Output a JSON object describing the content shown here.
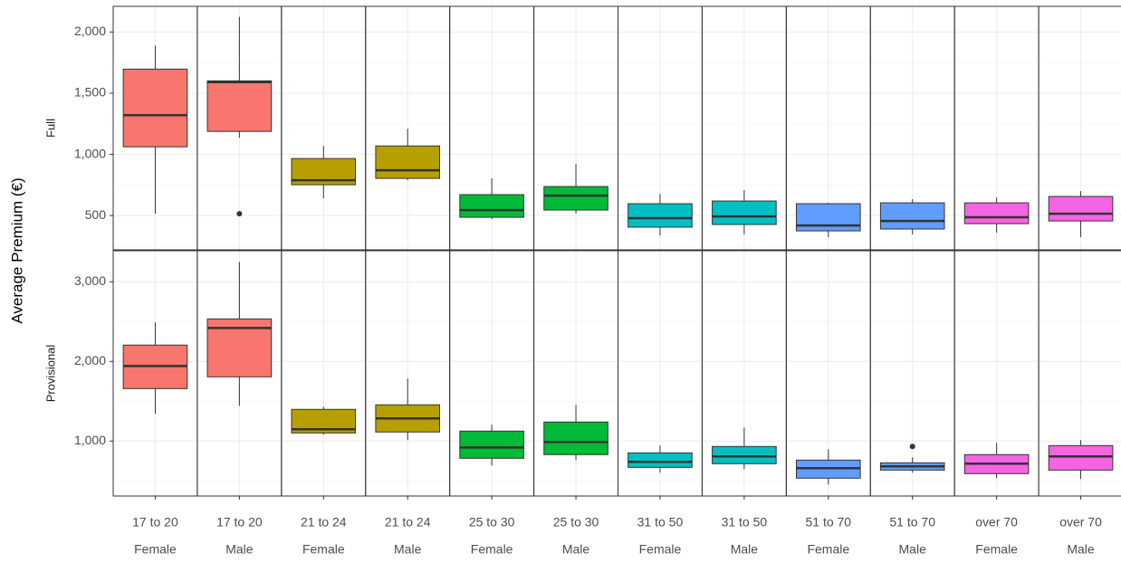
{
  "chart_data": {
    "type": "box",
    "y_label": "Average Premium (€)",
    "grid": true,
    "categories": [
      {
        "age": "17 to 20",
        "gender": "Female",
        "color": "#F8766D"
      },
      {
        "age": "17 to 20",
        "gender": "Male",
        "color": "#F8766D"
      },
      {
        "age": "21 to 24",
        "gender": "Female",
        "color": "#B79F00"
      },
      {
        "age": "21 to 24",
        "gender": "Male",
        "color": "#B79F00"
      },
      {
        "age": "25 to 30",
        "gender": "Female",
        "color": "#00BA38"
      },
      {
        "age": "25 to 30",
        "gender": "Male",
        "color": "#00BA38"
      },
      {
        "age": "31 to 50",
        "gender": "Female",
        "color": "#00BFC4"
      },
      {
        "age": "31 to 50",
        "gender": "Male",
        "color": "#00BFC4"
      },
      {
        "age": "51 to 70",
        "gender": "Female",
        "color": "#619CFF"
      },
      {
        "age": "51 to 70",
        "gender": "Male",
        "color": "#619CFF"
      },
      {
        "age": "over 70",
        "gender": "Female",
        "color": "#F564E3"
      },
      {
        "age": "over 70",
        "gender": "Male",
        "color": "#F564E3"
      }
    ],
    "facets": [
      {
        "label": "Full",
        "ylim": [
          220,
          2210
        ],
        "yticks": [
          {
            "value": 500,
            "label": "500"
          },
          {
            "value": 1000,
            "label": "1,000"
          },
          {
            "value": 1500,
            "label": "1,500"
          },
          {
            "value": 2000,
            "label": "2,000"
          }
        ],
        "boxes": [
          {
            "min": 515,
            "q1": 1062,
            "median": 1320,
            "q3": 1697,
            "max": 1889,
            "outliers": []
          },
          {
            "min": 1136,
            "q1": 1188,
            "median": 1590,
            "q3": 1601,
            "max": 2125,
            "outliers": [
              515
            ]
          },
          {
            "min": 641,
            "q1": 752,
            "median": 789,
            "q3": 966,
            "max": 1069,
            "outliers": []
          },
          {
            "min": 789,
            "q1": 804,
            "median": 870,
            "q3": 1069,
            "max": 1210,
            "outliers": []
          },
          {
            "min": 471,
            "q1": 486,
            "median": 545,
            "q3": 671,
            "max": 804,
            "outliers": []
          },
          {
            "min": 515,
            "q1": 545,
            "median": 663,
            "q3": 737,
            "max": 922,
            "outliers": []
          },
          {
            "min": 338,
            "q1": 405,
            "median": 479,
            "q3": 597,
            "max": 678,
            "outliers": []
          },
          {
            "min": 346,
            "q1": 427,
            "median": 493,
            "q3": 619,
            "max": 707,
            "outliers": []
          },
          {
            "min": 323,
            "q1": 375,
            "median": 419,
            "q3": 597,
            "max": 604,
            "outliers": []
          },
          {
            "min": 346,
            "q1": 390,
            "median": 456,
            "q3": 604,
            "max": 634,
            "outliers": []
          },
          {
            "min": 360,
            "q1": 434,
            "median": 486,
            "q3": 604,
            "max": 648,
            "outliers": []
          },
          {
            "min": 323,
            "q1": 456,
            "median": 515,
            "q3": 656,
            "max": 700,
            "outliers": []
          }
        ]
      },
      {
        "label": "Provisional",
        "ylim": [
          310,
          3390
        ],
        "yticks": [
          {
            "value": 1000,
            "label": "1,000"
          },
          {
            "value": 2000,
            "label": "2,000"
          },
          {
            "value": 3000,
            "label": "3,000"
          }
        ],
        "boxes": [
          {
            "min": 1341,
            "q1": 1659,
            "median": 1943,
            "q3": 2205,
            "max": 2489,
            "outliers": []
          },
          {
            "min": 1443,
            "q1": 1807,
            "median": 2420,
            "q3": 2534,
            "max": 3250,
            "outliers": []
          },
          {
            "min": 1080,
            "q1": 1102,
            "median": 1148,
            "q3": 1398,
            "max": 1432,
            "outliers": []
          },
          {
            "min": 1011,
            "q1": 1114,
            "median": 1284,
            "q3": 1455,
            "max": 1784,
            "outliers": []
          },
          {
            "min": 693,
            "q1": 784,
            "median": 920,
            "q3": 1125,
            "max": 1205,
            "outliers": []
          },
          {
            "min": 761,
            "q1": 830,
            "median": 989,
            "q3": 1239,
            "max": 1455,
            "outliers": []
          },
          {
            "min": 602,
            "q1": 670,
            "median": 739,
            "q3": 852,
            "max": 943,
            "outliers": []
          },
          {
            "min": 648,
            "q1": 716,
            "median": 807,
            "q3": 932,
            "max": 1170,
            "outliers": []
          },
          {
            "min": 455,
            "q1": 534,
            "median": 659,
            "q3": 761,
            "max": 898,
            "outliers": []
          },
          {
            "min": 602,
            "q1": 636,
            "median": 682,
            "q3": 727,
            "max": 795,
            "outliers": [
              932
            ]
          },
          {
            "min": 534,
            "q1": 591,
            "median": 716,
            "q3": 830,
            "max": 977,
            "outliers": []
          },
          {
            "min": 523,
            "q1": 636,
            "median": 807,
            "q3": 943,
            "max": 1011,
            "outliers": []
          }
        ]
      }
    ]
  }
}
